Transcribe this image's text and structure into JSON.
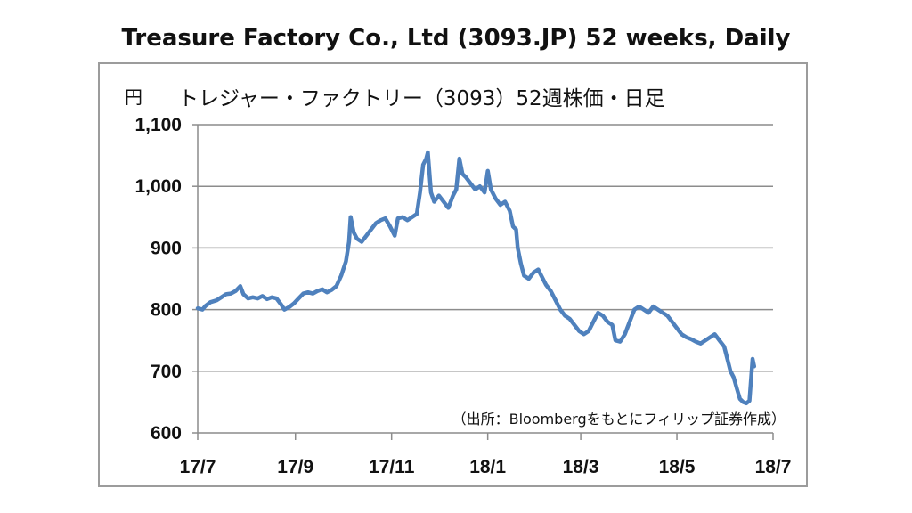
{
  "chart_data": {
    "type": "line",
    "title": "Treasure Factory Co., Ltd (3093.JP) 52 weeks, Daily",
    "subtitle": "トレジャー・ファクトリー（3093）52週株価・日足",
    "unit": "円",
    "source": "（出所：Bloombergをもとにフィリップ証券作成）",
    "ylim": [
      600,
      1100
    ],
    "y_ticks": [
      {
        "value": 600,
        "label": "600"
      },
      {
        "value": 700,
        "label": "700"
      },
      {
        "value": 800,
        "label": "800"
      },
      {
        "value": 900,
        "label": "900"
      },
      {
        "value": 1000,
        "label": "1,000"
      },
      {
        "value": 1100,
        "label": "1,100"
      }
    ],
    "x_ticks": [
      {
        "t": 0,
        "label": "17/7"
      },
      {
        "t": 62,
        "label": "17/9"
      },
      {
        "t": 123,
        "label": "17/11"
      },
      {
        "t": 184,
        "label": "18/1"
      },
      {
        "t": 243,
        "label": "18/3"
      },
      {
        "t": 304,
        "label": "18/5"
      },
      {
        "t": 365,
        "label": "18/7"
      }
    ],
    "grid": "horizontal",
    "line_color": "#4f81bd",
    "series": [
      {
        "points": [
          [
            0,
            802
          ],
          [
            3,
            800
          ],
          [
            5,
            806
          ],
          [
            8,
            812
          ],
          [
            12,
            815
          ],
          [
            15,
            820
          ],
          [
            18,
            825
          ],
          [
            21,
            826
          ],
          [
            24,
            830
          ],
          [
            27,
            838
          ],
          [
            29,
            825
          ],
          [
            32,
            818
          ],
          [
            35,
            820
          ],
          [
            38,
            818
          ],
          [
            41,
            822
          ],
          [
            44,
            817
          ],
          [
            47,
            820
          ],
          [
            50,
            818
          ],
          [
            53,
            808
          ],
          [
            55,
            800
          ],
          [
            58,
            804
          ],
          [
            61,
            810
          ],
          [
            64,
            818
          ],
          [
            67,
            826
          ],
          [
            70,
            828
          ],
          [
            73,
            826
          ],
          [
            76,
            830
          ],
          [
            79,
            833
          ],
          [
            82,
            828
          ],
          [
            85,
            832
          ],
          [
            88,
            838
          ],
          [
            91,
            855
          ],
          [
            94,
            878
          ],
          [
            96,
            910
          ],
          [
            97,
            950
          ],
          [
            99,
            925
          ],
          [
            101,
            915
          ],
          [
            104,
            910
          ],
          [
            107,
            920
          ],
          [
            110,
            930
          ],
          [
            113,
            940
          ],
          [
            116,
            945
          ],
          [
            119,
            948
          ],
          [
            122,
            935
          ],
          [
            125,
            920
          ],
          [
            127,
            948
          ],
          [
            130,
            950
          ],
          [
            133,
            945
          ],
          [
            136,
            950
          ],
          [
            139,
            955
          ],
          [
            141,
            990
          ],
          [
            143,
            1035
          ],
          [
            145,
            1045
          ],
          [
            146,
            1055
          ],
          [
            148,
            990
          ],
          [
            150,
            975
          ],
          [
            153,
            985
          ],
          [
            156,
            975
          ],
          [
            159,
            965
          ],
          [
            162,
            985
          ],
          [
            164,
            995
          ],
          [
            166,
            1045
          ],
          [
            168,
            1020
          ],
          [
            170,
            1015
          ],
          [
            173,
            1005
          ],
          [
            176,
            995
          ],
          [
            179,
            1000
          ],
          [
            182,
            990
          ],
          [
            184,
            1025
          ],
          [
            186,
            995
          ],
          [
            189,
            980
          ],
          [
            192,
            970
          ],
          [
            195,
            975
          ],
          [
            198,
            960
          ],
          [
            200,
            935
          ],
          [
            202,
            930
          ],
          [
            203,
            900
          ],
          [
            205,
            875
          ],
          [
            207,
            855
          ],
          [
            210,
            850
          ],
          [
            213,
            860
          ],
          [
            216,
            865
          ],
          [
            218,
            855
          ],
          [
            221,
            840
          ],
          [
            224,
            830
          ],
          [
            227,
            815
          ],
          [
            230,
            800
          ],
          [
            233,
            790
          ],
          [
            236,
            785
          ],
          [
            239,
            775
          ],
          [
            242,
            765
          ],
          [
            245,
            760
          ],
          [
            248,
            765
          ],
          [
            251,
            780
          ],
          [
            254,
            795
          ],
          [
            257,
            790
          ],
          [
            260,
            780
          ],
          [
            263,
            775
          ],
          [
            265,
            750
          ],
          [
            268,
            748
          ],
          [
            271,
            760
          ],
          [
            274,
            780
          ],
          [
            277,
            800
          ],
          [
            280,
            805
          ],
          [
            283,
            800
          ],
          [
            286,
            795
          ],
          [
            289,
            805
          ],
          [
            292,
            800
          ],
          [
            295,
            795
          ],
          [
            298,
            790
          ],
          [
            301,
            780
          ],
          [
            304,
            770
          ],
          [
            307,
            760
          ],
          [
            310,
            755
          ],
          [
            313,
            752
          ],
          [
            316,
            748
          ],
          [
            319,
            745
          ],
          [
            322,
            750
          ],
          [
            325,
            755
          ],
          [
            328,
            760
          ],
          [
            331,
            750
          ],
          [
            334,
            740
          ],
          [
            336,
            720
          ],
          [
            338,
            700
          ],
          [
            340,
            690
          ],
          [
            342,
            672
          ],
          [
            344,
            655
          ],
          [
            346,
            650
          ],
          [
            348,
            648
          ],
          [
            350,
            652
          ],
          [
            352,
            720
          ],
          [
            353,
            708
          ]
        ]
      }
    ]
  }
}
